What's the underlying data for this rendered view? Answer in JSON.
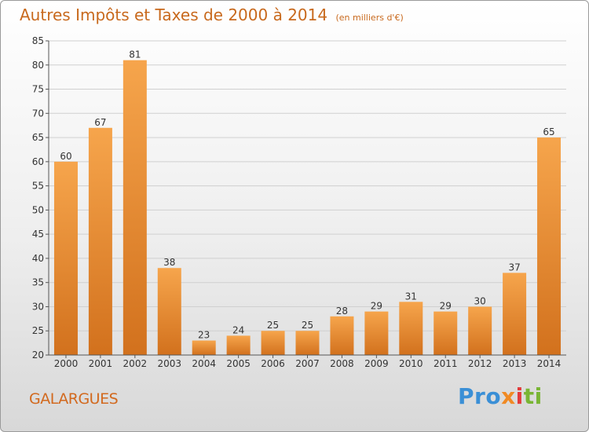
{
  "title": {
    "main": "Autres Impôts et Taxes de 2000 à 2014",
    "unit": "(en milliers d'€)"
  },
  "footer": {
    "city": "GALARGUES",
    "logo": [
      "Pro",
      "x",
      "i",
      "ti"
    ]
  },
  "colors": {
    "bar_top": "#f6a54c",
    "bar_bottom": "#d2711d",
    "title": "#c8691d",
    "grid": "#d0d0d0"
  },
  "chart_data": {
    "type": "bar",
    "title": "Autres Impôts et Taxes de 2000 à 2014",
    "categories": [
      "2000",
      "2001",
      "2002",
      "2003",
      "2004",
      "2005",
      "2006",
      "2007",
      "2008",
      "2009",
      "2010",
      "2011",
      "2012",
      "2013",
      "2014"
    ],
    "values": [
      60,
      67,
      81,
      38,
      23,
      24,
      25,
      25,
      28,
      29,
      31,
      29,
      30,
      37,
      65
    ],
    "ylim": [
      20,
      85
    ],
    "yticks": [
      20,
      25,
      30,
      35,
      40,
      45,
      50,
      55,
      60,
      65,
      70,
      75,
      80,
      85
    ],
    "grid": true,
    "xlabel": "",
    "ylabel": ""
  }
}
